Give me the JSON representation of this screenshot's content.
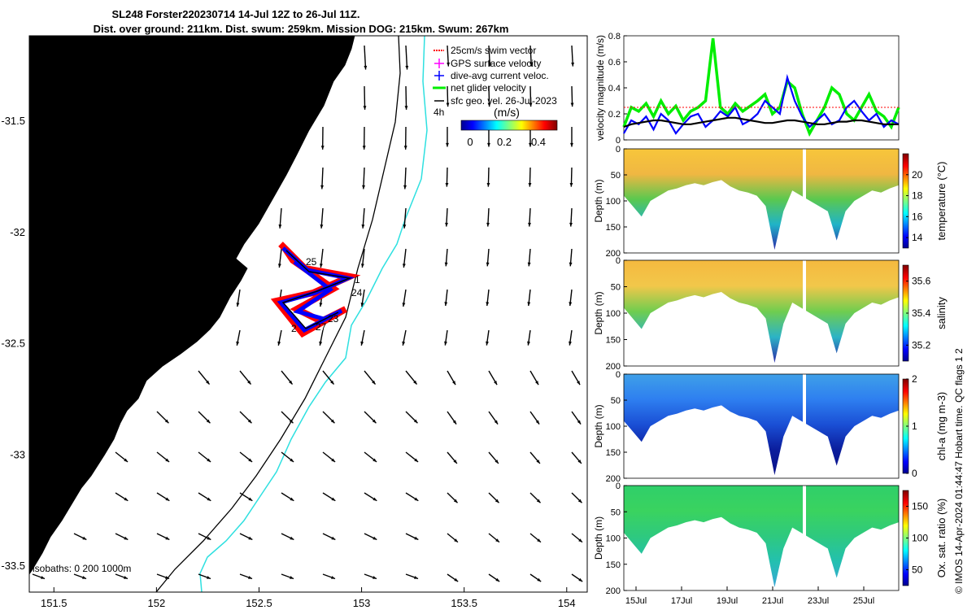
{
  "header": {
    "title_line1": "SL248 Forster220230714 14-Jul 12Z to 26-Jul 11Z.",
    "title_line2": "Dist. over ground: 211km. Dist. swum: 259km. Mission DOG: 215km. Swum: 267km"
  },
  "credit": "© IMOS 14-Apr-2024 01:44:47 Hobart time. QC flags 1  2",
  "map": {
    "x_ticks": [
      151.5,
      152,
      152.5,
      153,
      153.5,
      154
    ],
    "y_ticks": [
      -31.5,
      -32,
      -32.5,
      -33,
      -33.5
    ],
    "xlim": [
      151.38,
      154.1
    ],
    "ylim": [
      -33.62,
      -31.12
    ],
    "land_color": "#fbcb97",
    "isobaths_label": "isobaths: 0   200  1000m",
    "legend": [
      {
        "label": "25cm/s swim vector",
        "color": "#ff0000"
      },
      {
        "label": "GPS surface velocity",
        "color": "#ff00ff"
      },
      {
        "label": "dive-avg current veloc.",
        "color": "#0000ff"
      },
      {
        "label": "net glider velocity",
        "color": "#00ee00"
      },
      {
        "label": "sfc geo. vel. 26-Jul-2023",
        "color": "#000000"
      }
    ],
    "legend_extra": "4h",
    "colorbar": {
      "label": "(m/s)",
      "ticks": [
        "0",
        "0.2",
        "0.4"
      ]
    },
    "track_labels": [
      "1",
      "24",
      "25",
      "23",
      "27",
      "2"
    ]
  },
  "chart_data": [
    {
      "type": "line",
      "ylabel": "velocity magnitude (m/s)",
      "ylim": [
        0,
        0.8
      ],
      "yticks": [
        0,
        0.2,
        0.4,
        0.6,
        0.8
      ],
      "series": [
        {
          "color": "#00ee00",
          "values": [
            0.1,
            0.25,
            0.22,
            0.28,
            0.18,
            0.3,
            0.2,
            0.26,
            0.15,
            0.22,
            0.25,
            0.3,
            0.78,
            0.25,
            0.2,
            0.28,
            0.22,
            0.26,
            0.3,
            0.35,
            0.2,
            0.25,
            0.45,
            0.4,
            0.2,
            0.05,
            0.15,
            0.25,
            0.4,
            0.35,
            0.2,
            0.15,
            0.25,
            0.35,
            0.22,
            0.18,
            0.1,
            0.25
          ]
        },
        {
          "color": "#0000ff",
          "values": [
            0.05,
            0.15,
            0.12,
            0.18,
            0.08,
            0.2,
            0.15,
            0.05,
            0.12,
            0.18,
            0.2,
            0.1,
            0.15,
            0.22,
            0.18,
            0.25,
            0.12,
            0.15,
            0.2,
            0.3,
            0.25,
            0.2,
            0.48,
            0.3,
            0.18,
            0.1,
            0.15,
            0.2,
            0.12,
            0.15,
            0.25,
            0.3,
            0.22,
            0.15,
            0.2,
            0.1,
            0.15,
            0.12
          ]
        },
        {
          "color": "#000000",
          "values": [
            0.1,
            0.12,
            0.13,
            0.14,
            0.15,
            0.15,
            0.14,
            0.13,
            0.12,
            0.12,
            0.13,
            0.14,
            0.15,
            0.16,
            0.17,
            0.17,
            0.16,
            0.15,
            0.14,
            0.13,
            0.13,
            0.14,
            0.15,
            0.15,
            0.14,
            0.13,
            0.12,
            0.12,
            0.13,
            0.14,
            0.14,
            0.15,
            0.15,
            0.14,
            0.13,
            0.12,
            0.12,
            0.12
          ]
        },
        {
          "color": "#ff0000",
          "values": [
            0.25,
            0.25,
            0.25,
            0.25,
            0.25,
            0.25,
            0.25,
            0.25,
            0.25,
            0.25,
            0.25,
            0.25,
            0.25,
            0.25,
            0.25,
            0.25,
            0.25,
            0.25,
            0.25,
            0.25,
            0.25,
            0.25,
            0.25,
            0.25,
            0.25,
            0.25,
            0.25,
            0.25,
            0.25,
            0.25,
            0.25,
            0.25,
            0.25,
            0.25,
            0.25,
            0.25,
            0.25,
            0.25
          ]
        }
      ]
    },
    {
      "type": "heatmap",
      "ylabel": "Depth (m)",
      "ylim": [
        0,
        200
      ],
      "yticks": [
        0,
        50,
        100,
        150,
        200
      ],
      "colorbar_label": "temperature (°C)",
      "colorbar_ticks": [
        "14",
        "16",
        "18",
        "20"
      ],
      "colorbar_range": [
        13,
        22
      ]
    },
    {
      "type": "heatmap",
      "ylabel": "Depth (m)",
      "ylim": [
        0,
        200
      ],
      "yticks": [
        0,
        50,
        100,
        150,
        200
      ],
      "colorbar_label": "salinity",
      "colorbar_ticks": [
        "35.2",
        "35.4",
        "35.6"
      ],
      "colorbar_range": [
        35.1,
        35.7
      ]
    },
    {
      "type": "heatmap",
      "ylabel": "Depth (m)",
      "ylim": [
        0,
        200
      ],
      "yticks": [
        0,
        50,
        100,
        150,
        200
      ],
      "colorbar_label": "chl-a (mg m-3)",
      "colorbar_ticks": [
        "0",
        "1",
        "2"
      ],
      "colorbar_range": [
        0,
        2
      ]
    },
    {
      "type": "heatmap",
      "ylabel": "Depth (m)",
      "ylim": [
        0,
        200
      ],
      "yticks": [
        0,
        50,
        100,
        150,
        200
      ],
      "xticks": [
        "15Jul",
        "17Jul",
        "19Jul",
        "21Jul",
        "23Jul",
        "25Jul"
      ],
      "colorbar_label": "Ox. sat. ratio (%)",
      "colorbar_ticks": [
        "50",
        "100",
        "150"
      ],
      "colorbar_range": [
        25,
        175
      ]
    }
  ]
}
